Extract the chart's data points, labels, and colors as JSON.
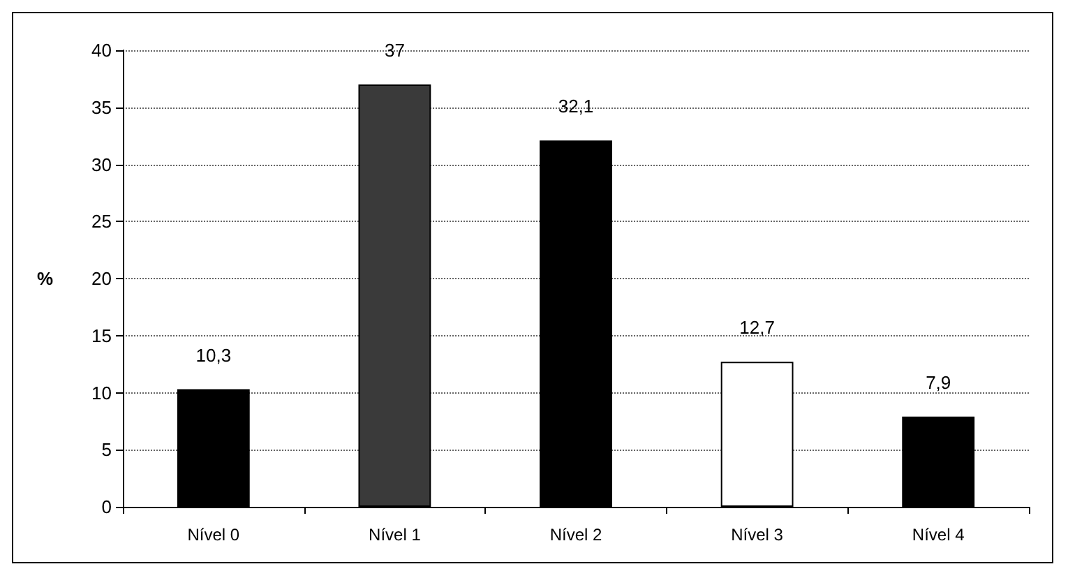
{
  "chart_data": {
    "type": "bar",
    "ylabel": "%",
    "categories": [
      "Nível 0",
      "Nível 1",
      "Nível 2",
      "Nível 3",
      "Nível 4"
    ],
    "values": [
      10.3,
      37,
      32.1,
      12.7,
      7.9
    ],
    "value_labels": [
      "10,3",
      "37",
      "32,1",
      "12,7",
      "7,9"
    ],
    "colors": [
      "#000000",
      "#3a3a3a",
      "#000000",
      "#ffffff",
      "#000000"
    ],
    "ylim": [
      0,
      40
    ],
    "yticks": [
      0,
      5,
      10,
      15,
      20,
      25,
      30,
      35,
      40
    ],
    "grid": "y",
    "line_style": "dotted"
  }
}
